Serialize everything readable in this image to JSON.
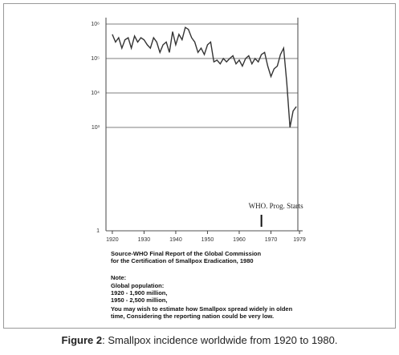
{
  "chart_data": {
    "type": "line",
    "x": [
      1920,
      1921,
      1922,
      1923,
      1924,
      1925,
      1926,
      1927,
      1928,
      1929,
      1930,
      1931,
      1932,
      1933,
      1934,
      1935,
      1936,
      1937,
      1938,
      1939,
      1940,
      1941,
      1942,
      1943,
      1944,
      1945,
      1946,
      1947,
      1948,
      1949,
      1950,
      1951,
      1952,
      1953,
      1954,
      1955,
      1956,
      1957,
      1958,
      1959,
      1960,
      1961,
      1962,
      1963,
      1964,
      1965,
      1966,
      1967,
      1968,
      1969,
      1970,
      1971,
      1972,
      1973,
      1974,
      1975,
      1976,
      1977,
      1978
    ],
    "series": [
      {
        "name": "Smallpox cases",
        "color": "#333333",
        "values": [
          500000,
          300000,
          400000,
          200000,
          350000,
          400000,
          200000,
          450000,
          300000,
          400000,
          350000,
          250000,
          200000,
          400000,
          300000,
          150000,
          250000,
          300000,
          150000,
          600000,
          250000,
          500000,
          350000,
          800000,
          700000,
          400000,
          300000,
          150000,
          200000,
          130000,
          250000,
          300000,
          80000,
          90000,
          70000,
          100000,
          80000,
          100000,
          120000,
          70000,
          90000,
          60000,
          100000,
          120000,
          70000,
          100000,
          80000,
          130000,
          150000,
          60000,
          30000,
          50000,
          60000,
          130000,
          200000,
          20000,
          1000,
          3000,
          4000
        ]
      }
    ],
    "xlim": [
      1918,
      1980
    ],
    "xticks": [
      1920,
      1930,
      1940,
      1950,
      1960,
      1970,
      1979
    ],
    "ylim": [
      1,
      1000000
    ],
    "log_y": true,
    "yticks": [
      1,
      {
        "value": 1000,
        "label": "10³"
      },
      {
        "value": 10000,
        "label": "10⁴"
      },
      {
        "value": 100000,
        "label": "10⁵"
      },
      {
        "value": 1000000,
        "label": "10⁶"
      }
    ],
    "grid": true,
    "annotation": {
      "text": "WHO. Prog. Starts",
      "x": 1967
    }
  },
  "notes": [
    "Source-WHO Final Report of the Global Commission",
    "for the Certification of Smallpox Eradication, 1980",
    "Note:",
    "Global population:",
    "1920 - 1,900 million,",
    "1950 - 2,500 million,",
    "You may wish to estimate how Smallpox spread widely in olden",
    "time, Considering the reporting nation could be very low."
  ],
  "caption": {
    "label": "Figure 2",
    "text": ": Smallpox incidence worldwide from 1920 to 1980."
  }
}
